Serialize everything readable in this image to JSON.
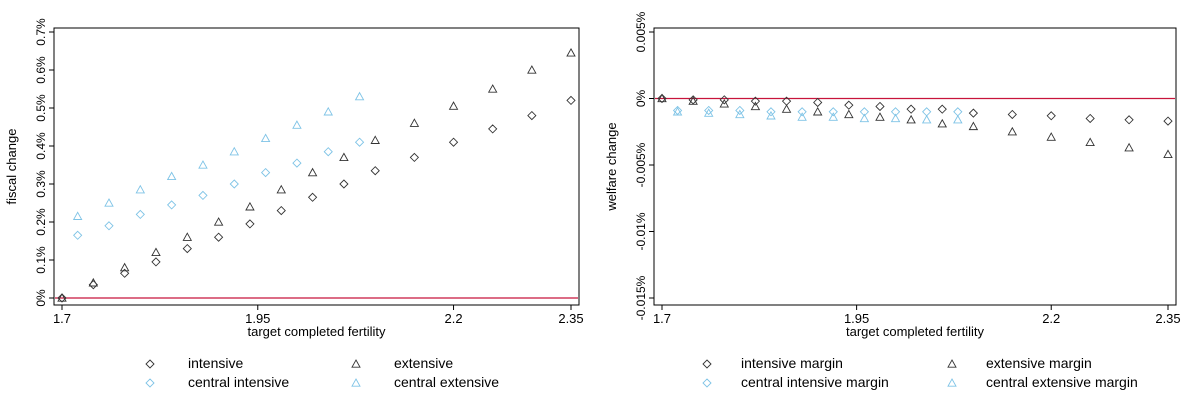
{
  "chart_data": [
    {
      "type": "scatter",
      "title": "",
      "xlabel": "target completed fertility",
      "ylabel": "fiscal change",
      "xlim": [
        1.7,
        2.35
      ],
      "ylim": [
        0,
        0.7
      ],
      "x_ticks": [
        "1.7",
        "1.95",
        "2.2",
        "2.35"
      ],
      "y_ticks": [
        "0%",
        "0.1%",
        "0.2%",
        "0.3%",
        "0.4%",
        "0.5%",
        "0.6%",
        "0.7%"
      ],
      "grid": false,
      "legend_position": "bottom",
      "reference_line": {
        "y": 0,
        "color": "#c8143c"
      },
      "series": [
        {
          "name": "intensive",
          "marker": "diamond",
          "color": "#333333",
          "x": [
            1.7,
            1.74,
            1.78,
            1.82,
            1.86,
            1.9,
            1.94,
            1.98,
            2.02,
            2.06,
            2.1,
            2.15,
            2.2,
            2.25,
            2.3,
            2.35
          ],
          "y": [
            0,
            0.035,
            0.065,
            0.095,
            0.13,
            0.16,
            0.195,
            0.23,
            0.265,
            0.3,
            0.335,
            0.37,
            0.41,
            0.445,
            0.48,
            0.52
          ]
        },
        {
          "name": "extensive",
          "marker": "triangle",
          "color": "#333333",
          "x": [
            1.7,
            1.74,
            1.78,
            1.82,
            1.86,
            1.9,
            1.94,
            1.98,
            2.02,
            2.06,
            2.1,
            2.15,
            2.2,
            2.25,
            2.3,
            2.35
          ],
          "y": [
            0,
            0.04,
            0.08,
            0.12,
            0.16,
            0.2,
            0.24,
            0.285,
            0.33,
            0.37,
            0.415,
            0.46,
            0.505,
            0.55,
            0.6,
            0.645
          ]
        },
        {
          "name": "central intensive",
          "marker": "diamond",
          "color": "#7ec3e6",
          "x": [
            1.72,
            1.76,
            1.8,
            1.84,
            1.88,
            1.92,
            1.96,
            2.0,
            2.04,
            2.08
          ],
          "y": [
            0.165,
            0.19,
            0.22,
            0.245,
            0.27,
            0.3,
            0.33,
            0.355,
            0.385,
            0.41
          ]
        },
        {
          "name": "central extensive",
          "marker": "triangle",
          "color": "#7ec3e6",
          "x": [
            1.72,
            1.76,
            1.8,
            1.84,
            1.88,
            1.92,
            1.96,
            2.0,
            2.04,
            2.08
          ],
          "y": [
            0.215,
            0.25,
            0.285,
            0.32,
            0.35,
            0.385,
            0.42,
            0.455,
            0.49,
            0.53
          ]
        }
      ]
    },
    {
      "type": "scatter",
      "title": "",
      "xlabel": "target completed fertility",
      "ylabel": "welfare change",
      "xlim": [
        1.7,
        2.35
      ],
      "ylim": [
        -0.015,
        0.005
      ],
      "x_ticks": [
        "1.7",
        "1.95",
        "2.2",
        "2.35"
      ],
      "y_ticks": [
        "-0.015%",
        "-0.01%",
        "-0.005%",
        "0%",
        "0.005%"
      ],
      "grid": false,
      "legend_position": "bottom",
      "reference_line": {
        "y": 0,
        "color": "#c8143c"
      },
      "series": [
        {
          "name": "intensive margin",
          "marker": "diamond",
          "color": "#333333",
          "x": [
            1.7,
            1.74,
            1.78,
            1.82,
            1.86,
            1.9,
            1.94,
            1.98,
            2.02,
            2.06,
            2.1,
            2.15,
            2.2,
            2.25,
            2.3,
            2.35
          ],
          "y": [
            0,
            -0.0001,
            -0.0001,
            -0.0002,
            -0.0002,
            -0.0003,
            -0.0005,
            -0.0006,
            -0.0008,
            -0.0008,
            -0.0011,
            -0.0012,
            -0.0013,
            -0.0015,
            -0.0016,
            -0.0017
          ]
        },
        {
          "name": "extensive margin",
          "marker": "triangle",
          "color": "#333333",
          "x": [
            1.7,
            1.74,
            1.78,
            1.82,
            1.86,
            1.9,
            1.94,
            1.98,
            2.02,
            2.06,
            2.1,
            2.15,
            2.2,
            2.25,
            2.3,
            2.35
          ],
          "y": [
            0,
            -0.0002,
            -0.0004,
            -0.0006,
            -0.0008,
            -0.001,
            -0.0012,
            -0.0014,
            -0.0016,
            -0.0019,
            -0.0021,
            -0.0025,
            -0.0029,
            -0.0033,
            -0.0037,
            -0.0042
          ]
        },
        {
          "name": "central intensive margin",
          "marker": "diamond",
          "color": "#7ec3e6",
          "x": [
            1.72,
            1.76,
            1.8,
            1.84,
            1.88,
            1.92,
            1.96,
            2.0,
            2.04,
            2.08
          ],
          "y": [
            -0.0009,
            -0.0009,
            -0.0009,
            -0.001,
            -0.001,
            -0.001,
            -0.001,
            -0.001,
            -0.001,
            -0.001
          ]
        },
        {
          "name": "central extensive margin",
          "marker": "triangle",
          "color": "#7ec3e6",
          "x": [
            1.72,
            1.76,
            1.8,
            1.84,
            1.88,
            1.92,
            1.96,
            2.0,
            2.04,
            2.08
          ],
          "y": [
            -0.001,
            -0.0011,
            -0.0012,
            -0.0013,
            -0.0014,
            -0.0014,
            -0.0015,
            -0.0015,
            -0.0016,
            -0.0016
          ]
        }
      ]
    }
  ]
}
